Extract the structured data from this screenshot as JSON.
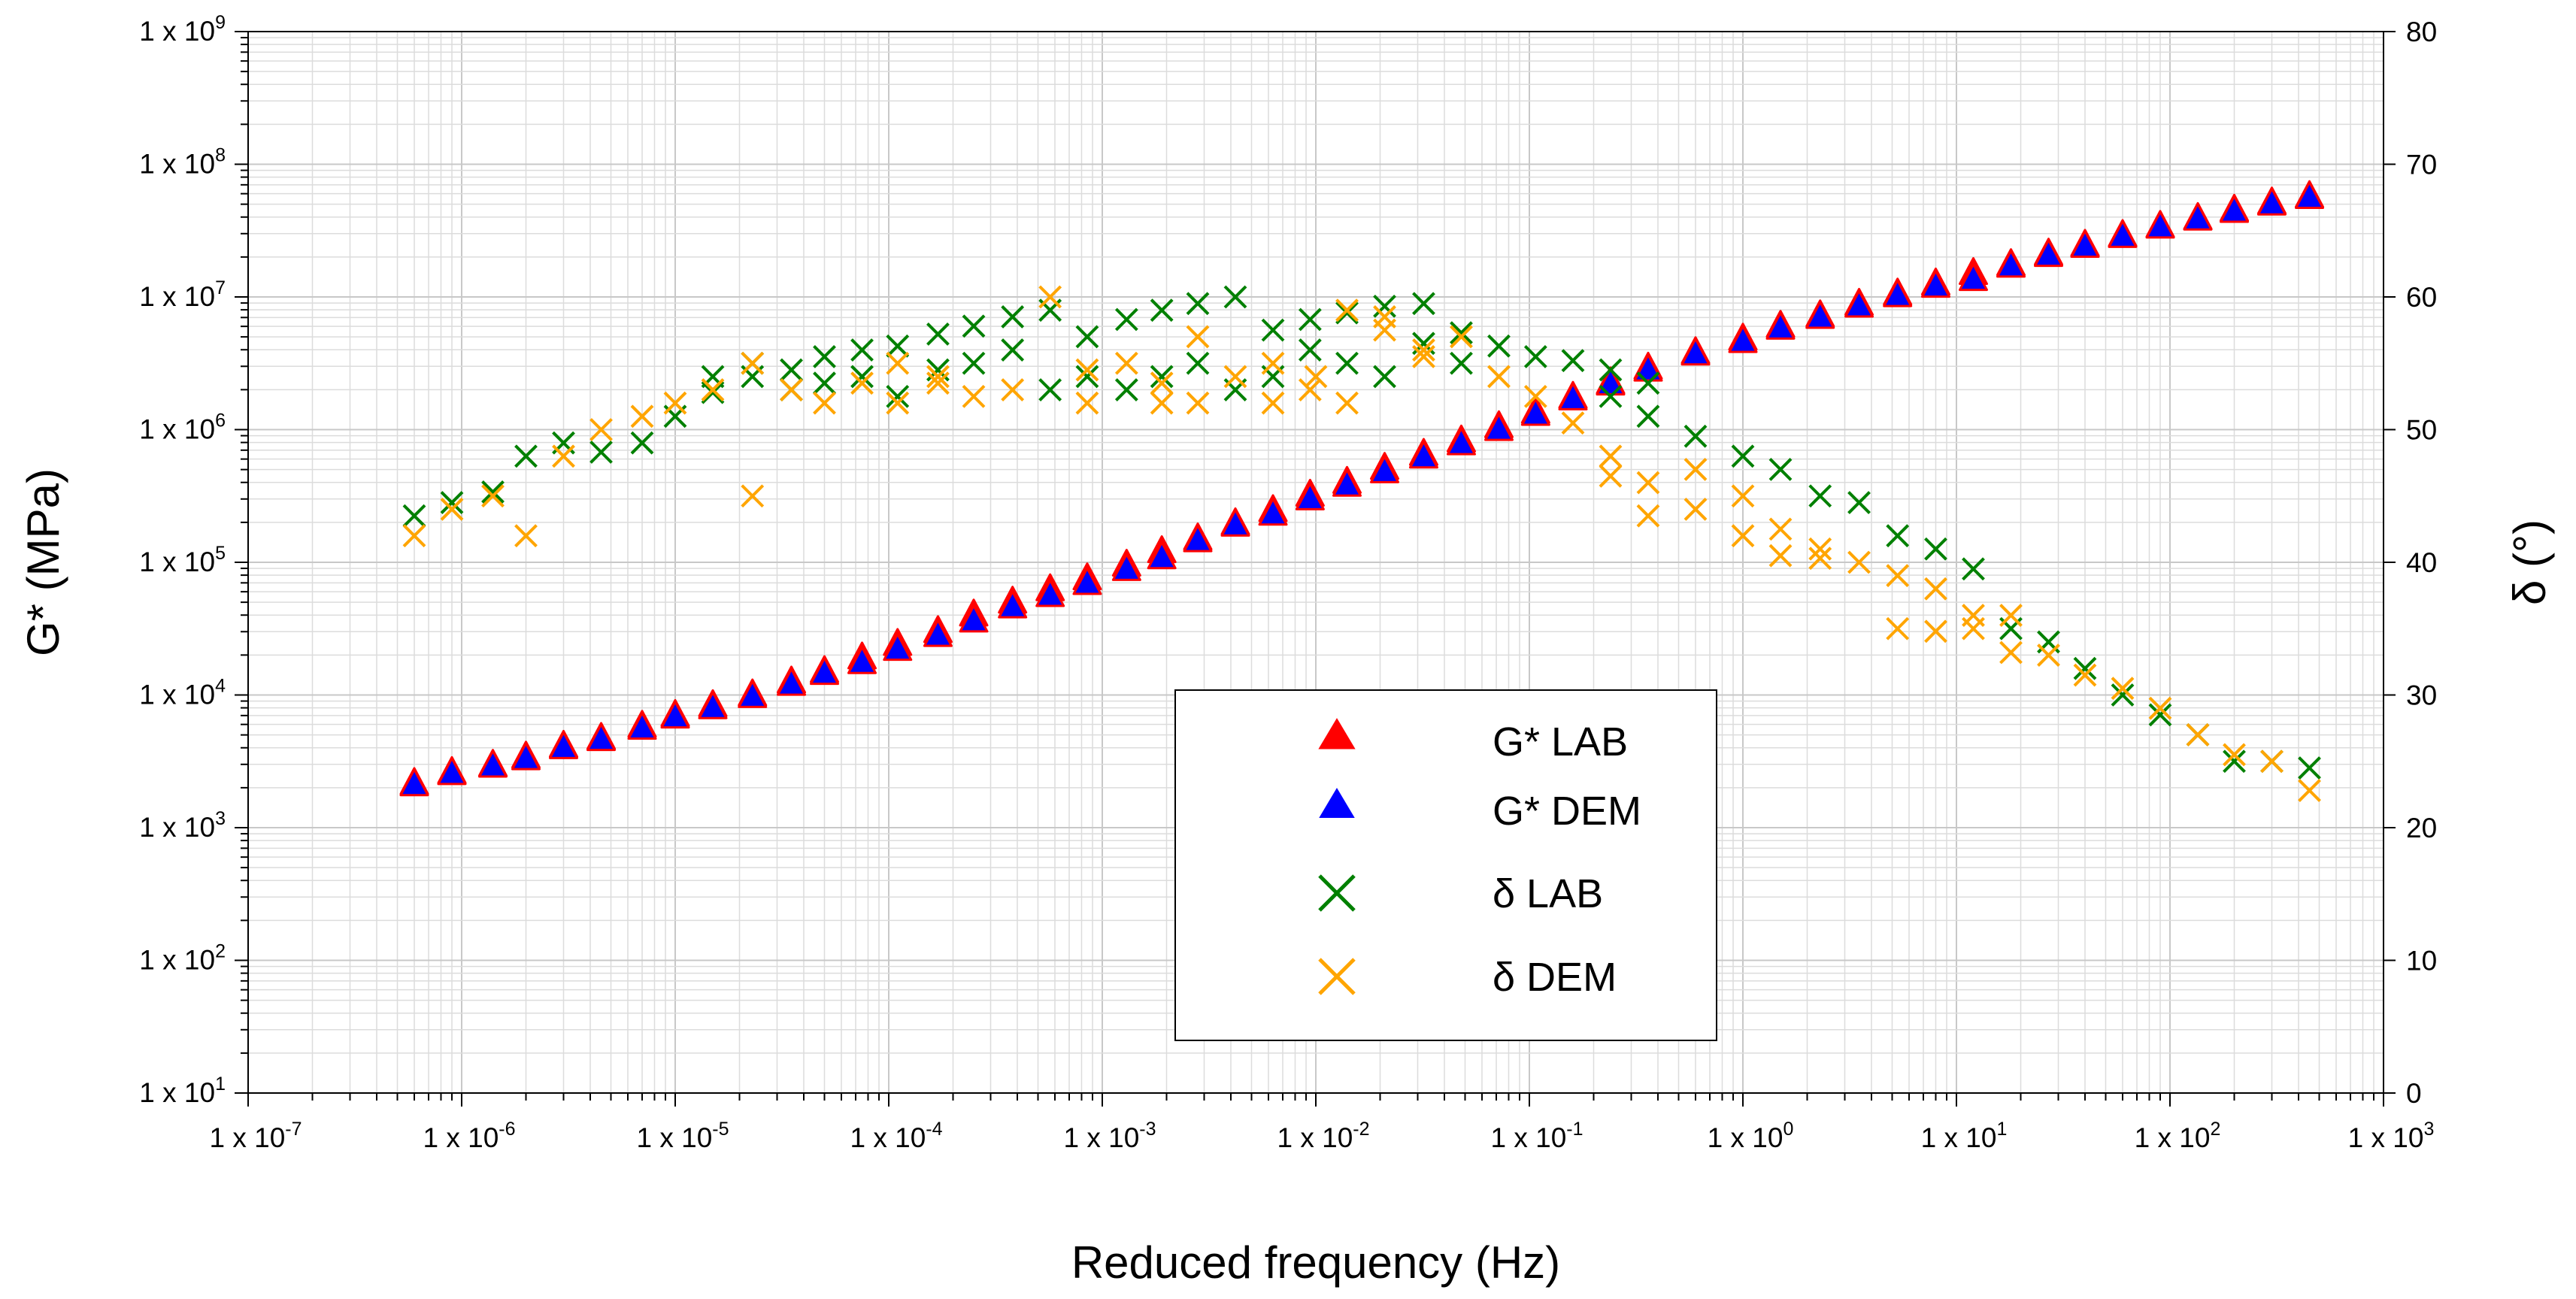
{
  "chart_data": {
    "type": "scatter",
    "title": "",
    "xlabel": "Reduced frequency (Hz)",
    "ylabel_left": "G* (MPa)",
    "ylabel_right": "δ (°)",
    "x_scale": "log",
    "y_left_scale": "log",
    "xlim": [
      1e-07,
      1000
    ],
    "ylim_left": [
      10,
      1000000000
    ],
    "ylim_right": [
      0,
      80
    ],
    "grid": true,
    "legend_position": "center-right",
    "x_ticks": [
      {
        "base": "1 x 10",
        "exp": "-7",
        "value": 1e-07
      },
      {
        "base": "1 x 10",
        "exp": "-6",
        "value": 1e-06
      },
      {
        "base": "1 x 10",
        "exp": "-5",
        "value": 1e-05
      },
      {
        "base": "1 x 10",
        "exp": "-4",
        "value": 0.0001
      },
      {
        "base": "1 x 10",
        "exp": "-3",
        "value": 0.001
      },
      {
        "base": "1 x 10",
        "exp": "-2",
        "value": 0.01
      },
      {
        "base": "1 x 10",
        "exp": "-1",
        "value": 0.1
      },
      {
        "base": "1 x 10",
        "exp": "0",
        "value": 1
      },
      {
        "base": "1 x 10",
        "exp": "1",
        "value": 10
      },
      {
        "base": "1 x 10",
        "exp": "2",
        "value": 100
      },
      {
        "base": "1 x 10",
        "exp": "3",
        "value": 1000
      }
    ],
    "y_left_ticks": [
      {
        "base": "1 x 10",
        "exp": "1",
        "value": 10
      },
      {
        "base": "1 x 10",
        "exp": "2",
        "value": 100
      },
      {
        "base": "1 x 10",
        "exp": "3",
        "value": 1000
      },
      {
        "base": "1 x 10",
        "exp": "4",
        "value": 10000
      },
      {
        "base": "1 x 10",
        "exp": "5",
        "value": 100000
      },
      {
        "base": "1 x 10",
        "exp": "6",
        "value": 1000000
      },
      {
        "base": "1 x 10",
        "exp": "7",
        "value": 10000000
      },
      {
        "base": "1 x 10",
        "exp": "8",
        "value": 100000000
      },
      {
        "base": "1 x 10",
        "exp": "9",
        "value": 1000000000
      }
    ],
    "y_right_ticks": [
      "0",
      "10",
      "20",
      "30",
      "40",
      "50",
      "60",
      "70",
      "80"
    ],
    "series": [
      {
        "name": "G* LAB",
        "marker": "triangle",
        "color": "#ff0000",
        "edge_color": "#ff0000",
        "axis": "left",
        "points": [
          [
            6e-07,
            2150
          ],
          [
            9e-07,
            2600
          ],
          [
            1.4e-06,
            2950
          ],
          [
            2e-06,
            3400
          ],
          [
            3e-06,
            4100
          ],
          [
            4.5e-06,
            4700
          ],
          [
            7e-06,
            5800
          ],
          [
            1e-05,
            7000
          ],
          [
            1.5e-05,
            8300
          ],
          [
            2.3e-05,
            10000
          ],
          [
            3.5e-05,
            12500
          ],
          [
            5e-05,
            15000
          ],
          [
            7.5e-05,
            19000
          ],
          [
            0.00011,
            24000
          ],
          [
            0.00017,
            30000
          ],
          [
            0.00025,
            40000
          ],
          [
            0.00038,
            50000
          ],
          [
            0.00057,
            62000
          ],
          [
            0.00085,
            75000
          ],
          [
            0.0013,
            95000
          ],
          [
            0.0019,
            120000
          ],
          [
            0.0028,
            150000
          ],
          [
            0.0042,
            195000
          ],
          [
            0.0063,
            245000
          ],
          [
            0.0094,
            320000
          ],
          [
            0.014,
            400000
          ],
          [
            0.021,
            510000
          ],
          [
            0.032,
            650000
          ],
          [
            0.048,
            820000
          ],
          [
            0.072,
            1050000
          ],
          [
            0.107,
            1350000
          ],
          [
            0.16,
            1750000
          ],
          [
            0.24,
            2250000
          ],
          [
            0.36,
            2900000
          ],
          [
            0.6,
            3800000
          ],
          [
            1,
            4800000
          ],
          [
            1.5,
            6000000
          ],
          [
            2.3,
            7200000
          ],
          [
            3.5,
            8800000
          ],
          [
            5.3,
            10500000
          ],
          [
            8,
            12500000
          ],
          [
            12,
            15000000
          ],
          [
            18,
            17500000
          ],
          [
            27,
            21000000
          ],
          [
            40,
            24500000
          ],
          [
            60,
            29000000
          ],
          [
            90,
            34000000
          ],
          [
            135,
            39000000
          ],
          [
            200,
            45000000
          ],
          [
            300,
            51000000
          ],
          [
            450,
            57000000
          ]
        ]
      },
      {
        "name": "G* DEM",
        "marker": "triangle",
        "color": "#0000ff",
        "edge_color": "#ff0000",
        "axis": "left",
        "points": [
          [
            6e-07,
            2100
          ],
          [
            9e-07,
            2550
          ],
          [
            1.4e-06,
            2900
          ],
          [
            2e-06,
            3300
          ],
          [
            3e-06,
            4000
          ],
          [
            4.5e-06,
            4600
          ],
          [
            7e-06,
            5600
          ],
          [
            1e-05,
            6800
          ],
          [
            1.5e-05,
            8000
          ],
          [
            2.3e-05,
            9700
          ],
          [
            3.5e-05,
            12000
          ],
          [
            5e-05,
            14500
          ],
          [
            7.5e-05,
            17500
          ],
          [
            0.00011,
            22000
          ],
          [
            0.00017,
            28000
          ],
          [
            0.00025,
            36000
          ],
          [
            0.00038,
            46000
          ],
          [
            0.00057,
            56000
          ],
          [
            0.00085,
            69000
          ],
          [
            0.0013,
            88000
          ],
          [
            0.0019,
            108000
          ],
          [
            0.0028,
            145000
          ],
          [
            0.0042,
            190000
          ],
          [
            0.0063,
            230000
          ],
          [
            0.0094,
            300000
          ],
          [
            0.014,
            380000
          ],
          [
            0.021,
            480000
          ],
          [
            0.032,
            620000
          ],
          [
            0.048,
            780000
          ],
          [
            0.072,
            1000000
          ],
          [
            0.107,
            1300000
          ],
          [
            0.16,
            1700000
          ],
          [
            0.24,
            2200000
          ],
          [
            0.36,
            2800000
          ],
          [
            0.6,
            3700000
          ],
          [
            1,
            4600000
          ],
          [
            1.5,
            5800000
          ],
          [
            2.3,
            7000000
          ],
          [
            3.5,
            8500000
          ],
          [
            5.3,
            10200000
          ],
          [
            8,
            12000000
          ],
          [
            12,
            13500000
          ],
          [
            18,
            17000000
          ],
          [
            27,
            20500000
          ],
          [
            40,
            24000000
          ],
          [
            60,
            28500000
          ],
          [
            90,
            33500000
          ],
          [
            135,
            38500000
          ],
          [
            200,
            44000000
          ],
          [
            300,
            50000000
          ],
          [
            450,
            56000000
          ]
        ]
      },
      {
        "name": "δ LAB",
        "marker": "x",
        "color": "#008000",
        "axis": "right",
        "points": [
          [
            6e-07,
            43.5
          ],
          [
            9e-07,
            44.5
          ],
          [
            1.4e-06,
            45.3
          ],
          [
            2e-06,
            48
          ],
          [
            3e-06,
            49
          ],
          [
            4.5e-06,
            48.3
          ],
          [
            7e-06,
            49
          ],
          [
            1e-05,
            51
          ],
          [
            1.5e-05,
            52.8
          ],
          [
            2.3e-05,
            54
          ],
          [
            3.5e-05,
            54.5
          ],
          [
            5e-05,
            55.5
          ],
          [
            7.5e-05,
            56
          ],
          [
            0.00011,
            56.3
          ],
          [
            0.00017,
            57.2
          ],
          [
            0.00025,
            57.8
          ],
          [
            0.00038,
            58.5
          ],
          [
            0.00057,
            59
          ],
          [
            0.00085,
            57
          ],
          [
            0.0013,
            58.3
          ],
          [
            0.0019,
            59
          ],
          [
            0.0028,
            59.5
          ],
          [
            0.0042,
            60
          ],
          [
            0.0063,
            57.5
          ],
          [
            0.0094,
            58.3
          ],
          [
            0.014,
            58.8
          ],
          [
            0.021,
            59.3
          ],
          [
            0.032,
            59.5
          ],
          [
            0.048,
            57.3
          ],
          [
            0.072,
            56.3
          ],
          [
            0.107,
            55.5
          ],
          [
            0.16,
            55.2
          ],
          [
            0.24,
            54.5
          ],
          [
            0.36,
            53.5
          ],
          [
            0.6,
            49.5
          ],
          [
            1,
            48
          ],
          [
            1.5,
            47
          ],
          [
            2.3,
            45
          ],
          [
            3.5,
            44.5
          ],
          [
            5.3,
            42
          ],
          [
            8,
            41
          ],
          [
            12,
            39.5
          ],
          [
            18,
            35
          ],
          [
            27,
            34
          ],
          [
            40,
            32
          ],
          [
            60,
            30
          ],
          [
            90,
            28.5
          ],
          [
            135,
            27
          ],
          [
            200,
            25
          ],
          [
            300,
            25
          ],
          [
            450,
            24.5
          ],
          [
            1.5e-05,
            54
          ],
          [
            2.3e-05,
            55
          ],
          [
            3.5e-05,
            53
          ],
          [
            5e-05,
            53.5
          ],
          [
            7.5e-05,
            54
          ],
          [
            0.00011,
            52.5
          ],
          [
            0.00017,
            54.5
          ],
          [
            0.00025,
            55
          ],
          [
            0.00038,
            56
          ],
          [
            0.00057,
            53
          ],
          [
            0.00085,
            54
          ],
          [
            0.0013,
            53
          ],
          [
            0.0019,
            54
          ],
          [
            0.0028,
            55
          ],
          [
            0.0042,
            53
          ],
          [
            0.0063,
            54
          ],
          [
            0.0094,
            56
          ],
          [
            0.014,
            55
          ],
          [
            0.021,
            54
          ],
          [
            0.032,
            56.5
          ],
          [
            0.048,
            55
          ],
          [
            0.24,
            52.5
          ],
          [
            0.36,
            51
          ]
        ]
      },
      {
        "name": "δ DEM",
        "marker": "x",
        "color": "#ffa500",
        "axis": "right",
        "points": [
          [
            6e-07,
            42
          ],
          [
            9e-07,
            44
          ],
          [
            1.4e-06,
            45
          ],
          [
            2e-06,
            42
          ],
          [
            3e-06,
            48
          ],
          [
            4.5e-06,
            50
          ],
          [
            7e-06,
            51
          ],
          [
            1e-05,
            52
          ],
          [
            1.5e-05,
            53
          ],
          [
            2.3e-05,
            45
          ],
          [
            2.3e-05,
            55
          ],
          [
            3.5e-05,
            53
          ],
          [
            5e-05,
            52
          ],
          [
            7.5e-05,
            53.5
          ],
          [
            0.00011,
            52
          ],
          [
            0.00017,
            54
          ],
          [
            0.00025,
            52.5
          ],
          [
            0.00038,
            53
          ],
          [
            0.00057,
            60
          ],
          [
            0.00085,
            52
          ],
          [
            0.0013,
            55
          ],
          [
            0.0019,
            52
          ],
          [
            0.0028,
            57
          ],
          [
            0.0042,
            54
          ],
          [
            0.0063,
            52
          ],
          [
            0.0094,
            53
          ],
          [
            0.014,
            52
          ],
          [
            0.021,
            58.5
          ],
          [
            0.032,
            56
          ],
          [
            0.048,
            57
          ],
          [
            0.072,
            54
          ],
          [
            0.107,
            52.5
          ],
          [
            0.16,
            50.5
          ],
          [
            0.24,
            48
          ],
          [
            0.36,
            46
          ],
          [
            0.6,
            44
          ],
          [
            1,
            42
          ],
          [
            1.5,
            42.5
          ],
          [
            2.3,
            41
          ],
          [
            3.5,
            40
          ],
          [
            5.3,
            39
          ],
          [
            8,
            38
          ],
          [
            12,
            35
          ],
          [
            18,
            36
          ],
          [
            27,
            33
          ],
          [
            40,
            31.5
          ],
          [
            60,
            30.5
          ],
          [
            90,
            29
          ],
          [
            135,
            27
          ],
          [
            200,
            25.5
          ],
          [
            300,
            25
          ],
          [
            450,
            22.8
          ],
          [
            0.014,
            59
          ],
          [
            0.021,
            57.5
          ],
          [
            0.032,
            55.5
          ],
          [
            0.01,
            54
          ],
          [
            0.0063,
            55
          ],
          [
            0.0028,
            52
          ],
          [
            0.0019,
            53.5
          ],
          [
            0.00085,
            54.5
          ],
          [
            0.00011,
            55
          ],
          [
            0.00017,
            53.5
          ],
          [
            0.24,
            46.5
          ],
          [
            0.36,
            43.5
          ],
          [
            1.5,
            40.5
          ],
          [
            2.3,
            40.3
          ],
          [
            5.3,
            35
          ],
          [
            8,
            34.8
          ],
          [
            12,
            36
          ],
          [
            18,
            33.2
          ],
          [
            1,
            45
          ],
          [
            0.6,
            47
          ]
        ]
      }
    ]
  },
  "legend": {
    "items": [
      {
        "label": "G* LAB",
        "marker": "triangle",
        "color": "#ff0000",
        "edge": "#ff0000"
      },
      {
        "label": "G* DEM",
        "marker": "triangle",
        "color": "#0000ff",
        "edge": "#ff0000"
      },
      {
        "label": "δ LAB",
        "marker": "x",
        "color": "#008000"
      },
      {
        "label": "δ DEM",
        "marker": "x",
        "color": "#ffa500"
      }
    ]
  }
}
